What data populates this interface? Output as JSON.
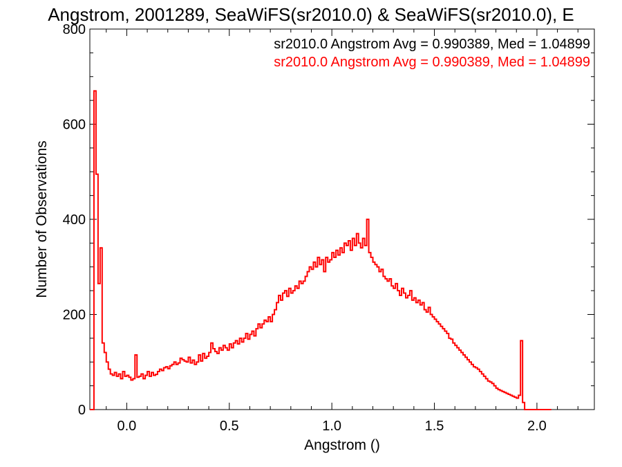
{
  "chart_data": {
    "type": "histogram",
    "title": "Angstrom, 2001289, SeaWiFS(sr2010.0) & SeaWiFS(sr2010.0), E",
    "xlabel": "Angstrom ()",
    "ylabel": "Number of Observations",
    "xlim": [
      -0.18,
      2.28
    ],
    "ylim": [
      0,
      800
    ],
    "x_ticks": [
      0.0,
      0.5,
      1.0,
      1.5,
      2.0
    ],
    "x_tick_labels": [
      "0.0",
      "0.5",
      "1.0",
      "1.5",
      "2.0"
    ],
    "y_ticks": [
      0,
      200,
      400,
      600,
      800
    ],
    "y_tick_labels": [
      "0",
      "200",
      "400",
      "600",
      "800"
    ],
    "grid": false,
    "legend_position": "top-right",
    "annotations": [
      {
        "text": "sr2010.0 Angstrom Avg = 0.990389, Med = 1.04899",
        "color": "#000000"
      },
      {
        "text": "sr2010.0 Angstrom Avg = 0.990389, Med = 1.04899",
        "color": "#ff0000"
      }
    ],
    "series": [
      {
        "color": "#ff0000",
        "bin_width": 0.01,
        "bin_start": -0.18,
        "values": [
          0,
          0,
          670,
          495,
          265,
          340,
          140,
          120,
          100,
          85,
          75,
          72,
          78,
          70,
          75,
          65,
          80,
          70,
          72,
          68,
          62,
          65,
          115,
          68,
          70,
          75,
          65,
          72,
          80,
          70,
          78,
          72,
          74,
          80,
          85,
          82,
          88,
          90,
          86,
          92,
          95,
          100,
          95,
          98,
          108,
          105,
          102,
          100,
          110,
          98,
          104,
          95,
          100,
          115,
          102,
          118,
          108,
          112,
          120,
          140,
          128,
          122,
          118,
          130,
          125,
          135,
          130,
          125,
          138,
          130,
          140,
          145,
          138,
          150,
          142,
          150,
          160,
          148,
          158,
          165,
          155,
          170,
          180,
          172,
          180,
          188,
          185,
          195,
          185,
          200,
          210,
          225,
          240,
          230,
          245,
          250,
          238,
          255,
          245,
          250,
          260,
          255,
          270,
          265,
          270,
          280,
          290,
          300,
          295,
          310,
          300,
          320,
          305,
          315,
          290,
          320,
          310,
          315,
          330,
          320,
          335,
          325,
          340,
          330,
          350,
          345,
          355,
          335,
          360,
          345,
          370,
          350,
          340,
          360,
          345,
          400,
          330,
          320,
          310,
          305,
          300,
          290,
          295,
          280,
          275,
          270,
          275,
          260,
          255,
          265,
          250,
          240,
          255,
          245,
          235,
          240,
          250,
          230,
          235,
          225,
          230,
          220,
          225,
          210,
          205,
          215,
          200,
          195,
          190,
          185,
          180,
          175,
          170,
          165,
          160,
          150,
          148,
          140,
          135,
          130,
          125,
          120,
          115,
          110,
          105,
          100,
          95,
          90,
          88,
          85,
          80,
          75,
          70,
          65,
          60,
          58,
          55,
          50,
          45,
          42,
          40,
          38,
          36,
          34,
          32,
          30,
          28,
          26,
          24,
          30,
          145,
          15,
          0,
          0,
          0,
          0,
          0,
          0,
          0,
          0,
          0,
          0,
          0,
          0,
          0
        ]
      }
    ]
  }
}
